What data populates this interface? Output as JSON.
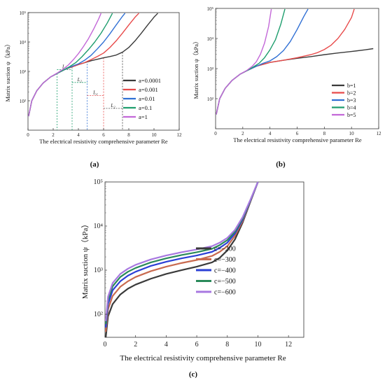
{
  "chart_data": [
    {
      "type": "line",
      "panel_label": "(a)",
      "xlabel": "The electrical resistivity comprehensive parameter Re",
      "ylabel": "Matrix suction ψ（kPa）",
      "xlim": [
        0,
        12
      ],
      "ylim": [
        10,
        100000
      ],
      "y_scale": "log",
      "x_ticks": [
        "0",
        "2",
        "4",
        "6",
        "8",
        "10",
        "12"
      ],
      "y_ticks": [
        "10²",
        "10³",
        "10⁴",
        "10⁵"
      ],
      "legend_position": "right",
      "annotation_text": [
        "L₂",
        "L₂",
        "L₂",
        "L₂"
      ],
      "colors": [
        "#3a3a3a",
        "#e84a4a",
        "#2f6fd4",
        "#1f9e6e",
        "#c368d8"
      ],
      "series": [
        {
          "name": "a=0.0001",
          "x": [
            0.05,
            0.3,
            0.7,
            1.2,
            1.8,
            2.3,
            3,
            4,
            5,
            6,
            6.5,
            7,
            7.5,
            8,
            8.5,
            9,
            9.5,
            10,
            10.3
          ],
          "y": [
            30,
            100,
            220,
            400,
            650,
            850,
            1200,
            1700,
            2300,
            2900,
            3200,
            3600,
            4500,
            6500,
            11000,
            20000,
            38000,
            70000,
            95000
          ]
        },
        {
          "name": "a=0.001",
          "x": [
            0.05,
            0.3,
            0.7,
            1.2,
            1.8,
            2.3,
            3,
            4,
            4.5,
            5,
            5.5,
            6,
            6.5,
            7,
            7.5,
            8,
            8.5,
            8.8
          ],
          "y": [
            30,
            100,
            220,
            400,
            650,
            850,
            1200,
            1700,
            2000,
            2500,
            3200,
            4200,
            6500,
            11000,
            20000,
            38000,
            70000,
            95000
          ]
        },
        {
          "name": "a=0.01",
          "x": [
            0.05,
            0.3,
            0.7,
            1.2,
            1.8,
            2.3,
            3,
            3.5,
            4,
            4.5,
            5,
            5.5,
            6,
            6.5,
            7,
            7.5,
            7.7
          ],
          "y": [
            30,
            100,
            220,
            400,
            650,
            850,
            1200,
            1500,
            1800,
            2400,
            3500,
            5800,
            10000,
            19000,
            38000,
            75000,
            95000
          ]
        },
        {
          "name": "a=0.1",
          "x": [
            0.05,
            0.3,
            0.7,
            1.2,
            1.8,
            2.3,
            2.8,
            3.3,
            3.8,
            4.3,
            4.8,
            5.3,
            5.8,
            6.3,
            6.7
          ],
          "y": [
            30,
            100,
            220,
            400,
            650,
            850,
            1100,
            1450,
            2000,
            3200,
            5500,
            10000,
            20000,
            45000,
            95000
          ]
        },
        {
          "name": "a=1",
          "x": [
            0.05,
            0.3,
            0.7,
            1.2,
            1.8,
            2.3,
            2.8,
            3.2,
            3.6,
            4,
            4.4,
            4.8,
            5.2,
            5.6,
            5.8
          ],
          "y": [
            30,
            100,
            220,
            400,
            650,
            870,
            1200,
            1650,
            2500,
            4000,
            7000,
            13000,
            27000,
            60000,
            95000
          ]
        }
      ]
    },
    {
      "type": "line",
      "panel_label": "(b)",
      "xlabel": "The electrical resistivity comprehensive parameter Re",
      "ylabel": "Matrix suction ψ（kPa）",
      "xlim": [
        0,
        12
      ],
      "ylim": [
        10,
        100000
      ],
      "y_scale": "log",
      "x_ticks": [
        "0",
        "2",
        "4",
        "6",
        "8",
        "10",
        "12"
      ],
      "y_ticks": [
        "10²",
        "10³",
        "10⁴",
        "10⁵"
      ],
      "legend_position": "right",
      "colors": [
        "#3a3a3a",
        "#e84a4a",
        "#2f6fd4",
        "#1f9e6e",
        "#c368d8"
      ],
      "series": [
        {
          "name": "b=1",
          "x": [
            0.05,
            0.3,
            0.7,
            1.2,
            1.8,
            2.3,
            3,
            4,
            5,
            6,
            7,
            8,
            9,
            10,
            11,
            11.6
          ],
          "y": [
            30,
            100,
            220,
            400,
            650,
            850,
            1200,
            1600,
            1900,
            2200,
            2500,
            2900,
            3300,
            3700,
            4200,
            4600
          ]
        },
        {
          "name": "b=2",
          "x": [
            0.05,
            0.3,
            0.7,
            1.2,
            1.8,
            2.3,
            3,
            4,
            5,
            6,
            7,
            7.5,
            8,
            8.5,
            9,
            9.5,
            10,
            10.2
          ],
          "y": [
            30,
            100,
            220,
            400,
            650,
            850,
            1200,
            1600,
            1900,
            2300,
            2900,
            3400,
            4300,
            6000,
            10000,
            20000,
            50000,
            95000
          ]
        },
        {
          "name": "b=3",
          "x": [
            0.05,
            0.3,
            0.7,
            1.2,
            1.8,
            2.3,
            3,
            3.5,
            4,
            4.5,
            5,
            5.5,
            6,
            6.5,
            6.8
          ],
          "y": [
            30,
            100,
            220,
            400,
            650,
            850,
            1200,
            1500,
            1800,
            2500,
            4000,
            8000,
            20000,
            55000,
            95000
          ]
        },
        {
          "name": "b=4",
          "x": [
            0.05,
            0.3,
            0.7,
            1.2,
            1.8,
            2.3,
            2.8,
            3.2,
            3.6,
            4,
            4.4,
            4.8,
            5.1
          ],
          "y": [
            30,
            100,
            220,
            400,
            650,
            850,
            1150,
            1500,
            2300,
            4200,
            9000,
            30000,
            95000
          ]
        },
        {
          "name": "b=5",
          "x": [
            0.05,
            0.3,
            0.7,
            1.2,
            1.8,
            2.3,
            2.7,
            3,
            3.3,
            3.6,
            3.9,
            4.1
          ],
          "y": [
            30,
            100,
            220,
            400,
            650,
            870,
            1200,
            1700,
            3000,
            7000,
            25000,
            95000
          ]
        }
      ]
    },
    {
      "type": "line",
      "panel_label": "(c)",
      "xlabel": "The electrical resistivity comprehensive parameter Re",
      "ylabel": "Matrix suction ψ（kPa）",
      "xlim": [
        0,
        13
      ],
      "ylim": [
        30,
        100000
      ],
      "y_scale": "log",
      "x_ticks": [
        "0",
        "2",
        "4",
        "6",
        "8",
        "10",
        "12"
      ],
      "y_ticks": [
        "10²",
        "10³",
        "10⁴",
        "10⁵"
      ],
      "legend_position": "right",
      "colors": [
        "#3a3a3a",
        "#c86a4f",
        "#2b3fd6",
        "#2a8a5a",
        "#a878e0"
      ],
      "series": [
        {
          "name": "c=−200",
          "x": [
            0.05,
            0.2,
            0.5,
            1,
            1.5,
            2,
            3,
            4,
            5,
            6,
            7,
            7.5,
            8,
            8.5,
            9,
            9.5,
            10
          ],
          "y": [
            30,
            90,
            170,
            280,
            380,
            470,
            640,
            820,
            1000,
            1200,
            1500,
            1900,
            2800,
            5000,
            12000,
            35000,
            100000
          ]
        },
        {
          "name": "c=−300",
          "x": [
            0.05,
            0.2,
            0.5,
            1,
            1.5,
            2,
            3,
            4,
            5,
            6,
            7,
            7.5,
            8,
            8.5,
            9,
            9.5,
            10
          ],
          "y": [
            40,
            130,
            260,
            420,
            560,
            700,
            950,
            1200,
            1450,
            1700,
            2100,
            2600,
            3500,
            6000,
            13000,
            36000,
            100000
          ]
        },
        {
          "name": "c=−400",
          "x": [
            0.05,
            0.2,
            0.5,
            1,
            1.5,
            2,
            3,
            4,
            5,
            6,
            7,
            7.5,
            8,
            8.5,
            9,
            9.5,
            10
          ],
          "y": [
            50,
            170,
            350,
            560,
            750,
            920,
            1250,
            1550,
            1850,
            2150,
            2600,
            3200,
            4200,
            6800,
            14000,
            37000,
            100000
          ]
        },
        {
          "name": "c=−500",
          "x": [
            0.05,
            0.2,
            0.5,
            1,
            1.5,
            2,
            3,
            4,
            5,
            6,
            7,
            7.5,
            8,
            8.5,
            9,
            9.5,
            10
          ],
          "y": [
            60,
            210,
            430,
            700,
            920,
            1120,
            1500,
            1850,
            2200,
            2550,
            3050,
            3700,
            4800,
            7500,
            15000,
            38000,
            100000
          ]
        },
        {
          "name": "c=−600",
          "x": [
            0.05,
            0.2,
            0.5,
            1,
            1.5,
            2,
            3,
            4,
            5,
            6,
            7,
            7.5,
            8,
            8.5,
            9,
            9.5,
            10
          ],
          "y": [
            70,
            250,
            510,
            820,
            1080,
            1320,
            1750,
            2150,
            2550,
            2950,
            3500,
            4200,
            5400,
            8200,
            16000,
            39000,
            100000
          ]
        }
      ]
    }
  ]
}
